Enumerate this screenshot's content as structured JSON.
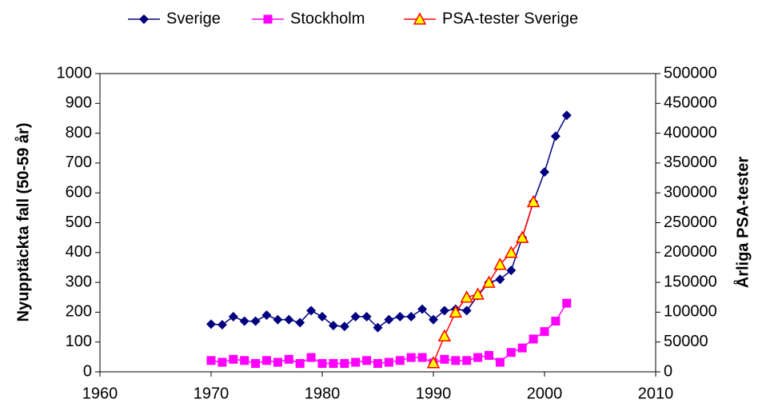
{
  "chart_data": {
    "type": "line",
    "x": [
      1970,
      1971,
      1972,
      1973,
      1974,
      1975,
      1976,
      1977,
      1978,
      1979,
      1980,
      1981,
      1982,
      1983,
      1984,
      1985,
      1986,
      1987,
      1988,
      1989,
      1990,
      1991,
      1992,
      1993,
      1994,
      1995,
      1996,
      1997,
      1998,
      1999,
      2000,
      2001,
      2002
    ],
    "series": [
      {
        "name": "Sverige",
        "color": "#000080",
        "marker": "diamond",
        "markerColor": "#000080",
        "values": [
          160,
          158,
          185,
          170,
          170,
          190,
          175,
          175,
          165,
          205,
          185,
          155,
          152,
          185,
          185,
          148,
          175,
          185,
          185,
          210,
          175,
          205,
          210,
          205,
          255,
          300,
          310,
          340,
          450,
          570,
          670,
          790,
          860
        ]
      },
      {
        "name": "Stockholm",
        "color": "#ff00ff",
        "marker": "square",
        "markerColor": "#ff00ff",
        "values": [
          38,
          32,
          42,
          38,
          28,
          38,
          32,
          42,
          28,
          48,
          28,
          28,
          28,
          32,
          38,
          28,
          32,
          38,
          48,
          48,
          30,
          42,
          38,
          38,
          48,
          55,
          32,
          65,
          80,
          110,
          135,
          170,
          230
        ]
      },
      {
        "name": "PSA-tester Sverige",
        "color": "#ff0000",
        "marker": "triangle",
        "markerColor": "#ffff00",
        "axis": "y2",
        "values": [
          null,
          null,
          null,
          null,
          null,
          null,
          null,
          null,
          null,
          null,
          null,
          null,
          null,
          null,
          null,
          null,
          null,
          null,
          null,
          null,
          15000,
          60000,
          100000,
          125000,
          130000,
          150000,
          180000,
          200000,
          225000,
          285000,
          null,
          null,
          null
        ]
      }
    ],
    "ylabel": "Nyupptäckta fall (50-59 år)",
    "y2label": "Årliga PSA-tester",
    "xlim": [
      1960,
      2010
    ],
    "xticks": [
      1960,
      1970,
      1980,
      1990,
      2000,
      2010
    ],
    "ylim": [
      0,
      1000
    ],
    "yticks": [
      0,
      100,
      200,
      300,
      400,
      500,
      600,
      700,
      800,
      900,
      1000
    ],
    "y2lim": [
      0,
      500000
    ],
    "y2ticks": [
      0,
      50000,
      100000,
      150000,
      200000,
      250000,
      300000,
      350000,
      400000,
      450000,
      500000
    ],
    "legend": "top"
  }
}
